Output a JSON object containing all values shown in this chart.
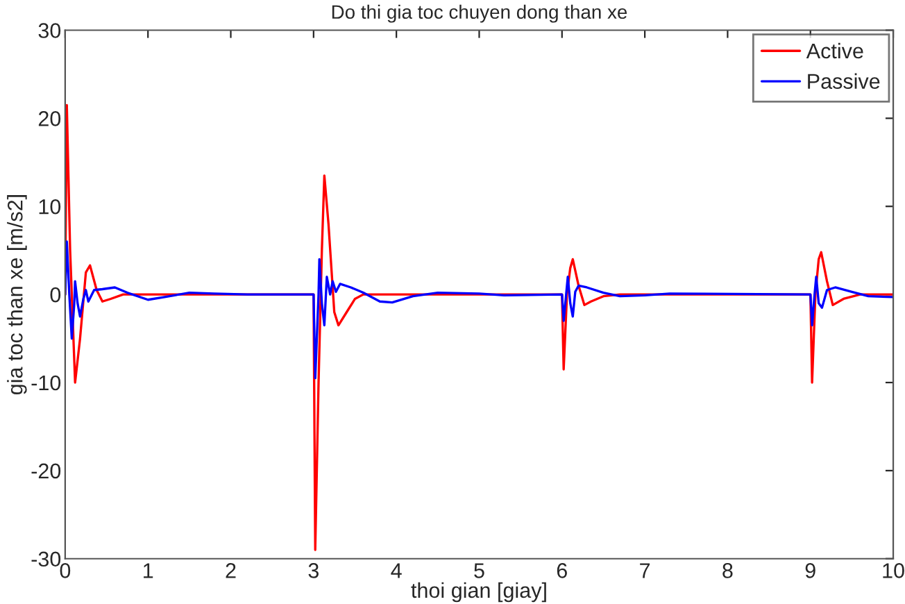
{
  "chart_data": {
    "type": "line",
    "title": "Do thi gia toc chuyen dong than xe",
    "xlabel": "thoi gian [giay]",
    "ylabel": "gia toc than xe [m/s2]",
    "xlim": [
      0,
      10
    ],
    "ylim": [
      -30,
      30
    ],
    "xticks": [
      0,
      1,
      2,
      3,
      4,
      5,
      6,
      7,
      8,
      9,
      10
    ],
    "yticks": [
      -30,
      -20,
      -10,
      0,
      10,
      20,
      30
    ],
    "grid": false,
    "legend": "top right",
    "marker": "none",
    "line_style": "solid",
    "series": [
      {
        "name": "Active",
        "color": "#ff0000",
        "x": [
          0,
          0.02,
          0.06,
          0.12,
          0.18,
          0.25,
          0.3,
          0.38,
          0.45,
          0.55,
          0.7,
          1.0,
          3.0,
          3.02,
          3.06,
          3.1,
          3.13,
          3.18,
          3.25,
          3.3,
          3.4,
          3.5,
          3.6,
          6.0,
          6.02,
          6.06,
          6.1,
          6.13,
          6.2,
          6.27,
          6.35,
          6.5,
          6.7,
          9.0,
          9.02,
          9.06,
          9.1,
          9.13,
          9.2,
          9.27,
          9.4,
          9.6,
          10
        ],
        "values": [
          0,
          21.5,
          5,
          -10,
          -5,
          2.5,
          3.3,
          0.5,
          -0.8,
          -0.5,
          0,
          0,
          0,
          -29,
          -10,
          5,
          13.5,
          8,
          -2,
          -3.5,
          -2,
          -0.5,
          0,
          0,
          -8.5,
          0,
          3,
          4,
          1,
          -1.2,
          -0.8,
          -0.2,
          0,
          0,
          -10,
          0,
          4,
          4.8,
          1.5,
          -1.2,
          -0.5,
          0,
          0
        ]
      },
      {
        "name": "Passive",
        "color": "#0000ff",
        "x": [
          0,
          0.02,
          0.05,
          0.08,
          0.11,
          0.12,
          0.15,
          0.18,
          0.22,
          0.25,
          0.28,
          0.35,
          0.45,
          0.6,
          0.75,
          1.0,
          1.2,
          1.5,
          1.8,
          2.2,
          3.0,
          3.02,
          3.06,
          3.07,
          3.1,
          3.13,
          3.16,
          3.2,
          3.23,
          3.27,
          3.32,
          3.45,
          3.6,
          3.8,
          3.95,
          4.2,
          4.5,
          5,
          5.3,
          6.0,
          6.02,
          6.05,
          6.07,
          6.1,
          6.13,
          6.16,
          6.2,
          6.3,
          6.5,
          6.7,
          7,
          7.3,
          9.0,
          9.02,
          9.05,
          9.07,
          9.1,
          9.14,
          9.2,
          9.3,
          9.5,
          9.7,
          10
        ],
        "values": [
          0,
          6,
          0,
          -5,
          -1,
          1.5,
          -1,
          -2.5,
          -0.5,
          0.5,
          -0.8,
          0.5,
          0.6,
          0.8,
          0.2,
          -0.6,
          -0.3,
          0.2,
          0.1,
          0,
          0,
          -9.5,
          0,
          4,
          -1,
          -3.5,
          2,
          0,
          1.5,
          0.3,
          1.2,
          0.8,
          0.2,
          -0.8,
          -0.9,
          -0.2,
          0.2,
          0.1,
          -0.1,
          0,
          -3,
          0,
          2,
          -1,
          -2.5,
          0.3,
          1,
          0.8,
          0.2,
          -0.2,
          -0.1,
          0.1,
          0,
          -3.5,
          0,
          2,
          -1,
          -1.5,
          0.5,
          0.8,
          0.3,
          -0.2,
          -0.3
        ]
      }
    ]
  }
}
